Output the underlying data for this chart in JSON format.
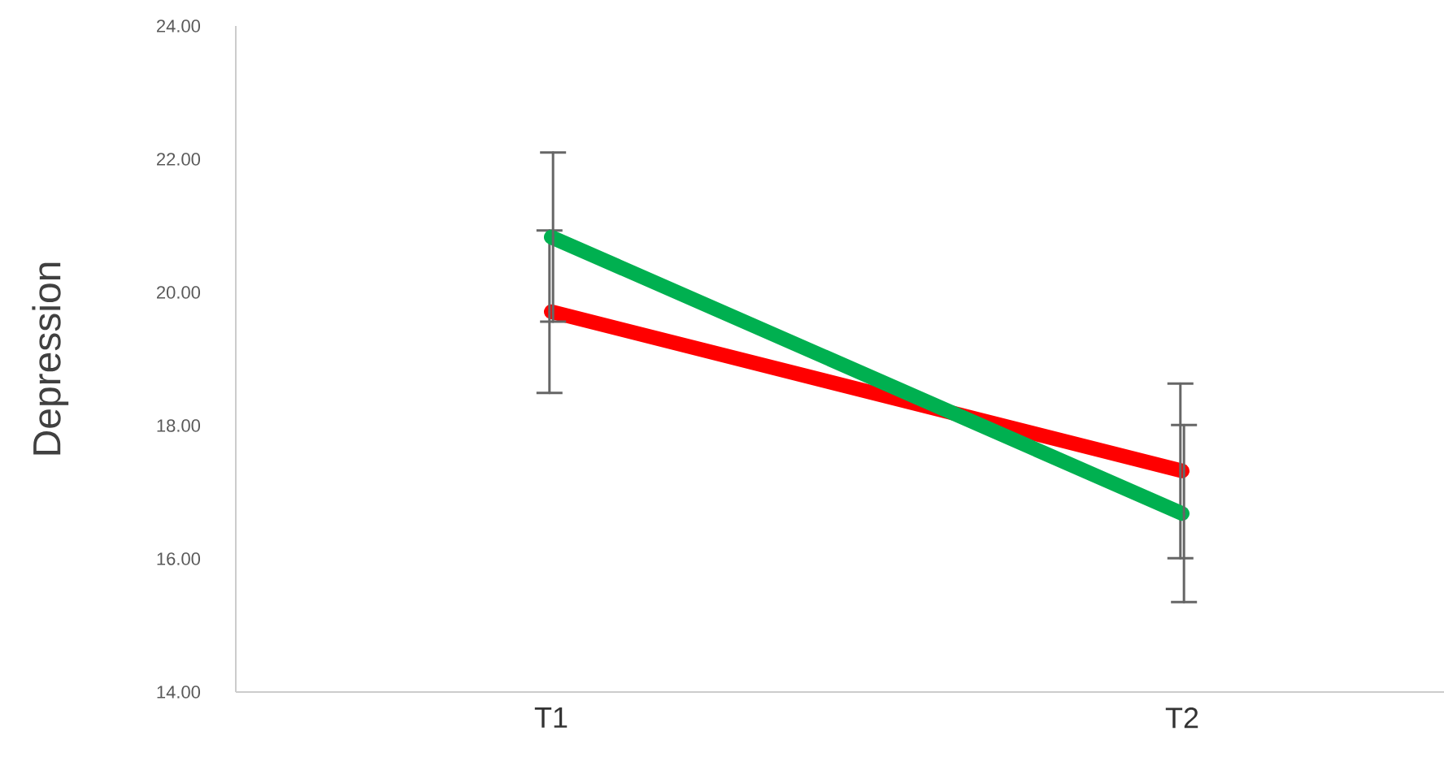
{
  "chart_data": {
    "type": "line",
    "ylabel": "Depression",
    "categories": [
      "T1",
      "T2"
    ],
    "series": [
      {
        "color": "#ff0000",
        "values": [
          19.71,
          17.32
        ],
        "errors": [
          1.22,
          1.31
        ]
      },
      {
        "color": "#00b050",
        "values": [
          20.83,
          16.68
        ],
        "errors": [
          1.27,
          1.33
        ]
      }
    ],
    "ylim": [
      14,
      24
    ],
    "yticks": [
      {
        "value": 14,
        "label": "14.00"
      },
      {
        "value": 16,
        "label": "16.00"
      },
      {
        "value": 18,
        "label": "18.00"
      },
      {
        "value": 20,
        "label": "20.00"
      },
      {
        "value": 22,
        "label": "22.00"
      },
      {
        "value": 24,
        "label": "24.00"
      }
    ],
    "grid": false,
    "legend": false,
    "marker": "none",
    "line_style": "solid"
  }
}
